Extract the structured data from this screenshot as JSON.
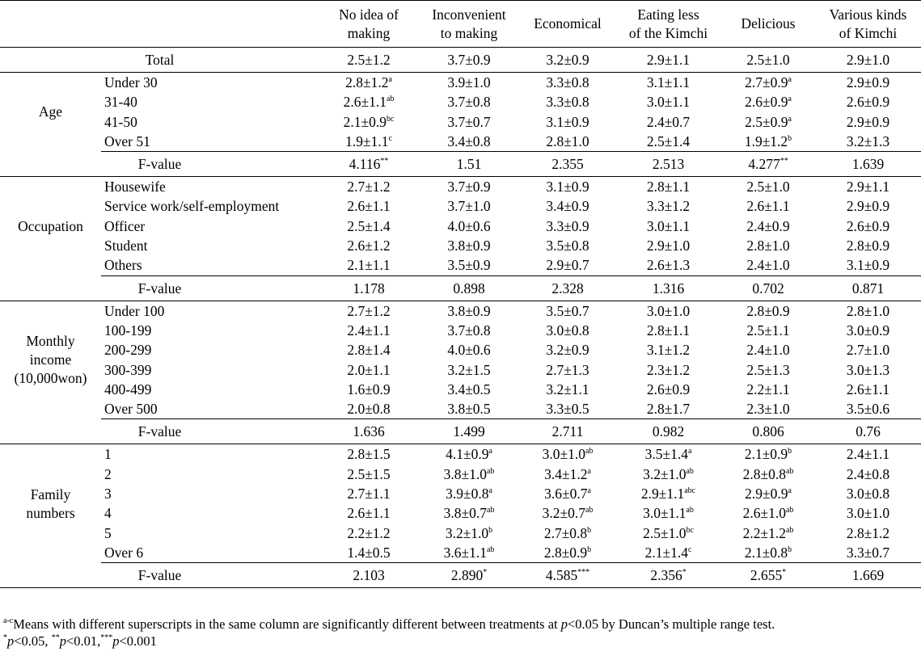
{
  "columns": [
    "No idea of making",
    "Inconvenient to making",
    "Economical",
    "Eating less of the Kimchi",
    "Delicious",
    "Various kinds of Kimchi"
  ],
  "columns_lines": [
    [
      "No idea of",
      "making"
    ],
    [
      "Inconvenient",
      "to making"
    ],
    [
      "Economical"
    ],
    [
      "Eating less",
      "of the Kimchi"
    ],
    [
      "Delicious"
    ],
    [
      "Various kinds",
      "of Kimchi"
    ]
  ],
  "total": {
    "label": "Total",
    "values": [
      "2.5±1.2",
      "3.7±0.9",
      "3.2±0.9",
      "2.9±1.1",
      "2.5±1.0",
      "2.9±1.0"
    ]
  },
  "groups": [
    {
      "name": "Age",
      "name_lines": [
        "Age"
      ],
      "rows": [
        {
          "label": "Under 30",
          "values": [
            [
              "2.8±1.2",
              "a"
            ],
            [
              "3.9±1.0",
              ""
            ],
            [
              "3.3±0.8",
              ""
            ],
            [
              "3.1±1.1",
              ""
            ],
            [
              "2.7±0.9",
              "a"
            ],
            [
              "2.9±0.9",
              ""
            ]
          ]
        },
        {
          "label": "31-40",
          "values": [
            [
              "2.6±1.1",
              "ab"
            ],
            [
              "3.7±0.8",
              ""
            ],
            [
              "3.3±0.8",
              ""
            ],
            [
              "3.0±1.1",
              ""
            ],
            [
              "2.6±0.9",
              "a"
            ],
            [
              "2.6±0.9",
              ""
            ]
          ]
        },
        {
          "label": "41-50",
          "values": [
            [
              "2.1±0.9",
              "bc"
            ],
            [
              "3.7±0.7",
              ""
            ],
            [
              "3.1±0.9",
              ""
            ],
            [
              "2.4±0.7",
              ""
            ],
            [
              "2.5±0.9",
              "a"
            ],
            [
              "2.9±0.9",
              ""
            ]
          ]
        },
        {
          "label": "Over 51",
          "values": [
            [
              "1.9±1.1",
              "c"
            ],
            [
              "3.4±0.8",
              ""
            ],
            [
              "2.8±1.0",
              ""
            ],
            [
              "2.5±1.4",
              ""
            ],
            [
              "1.9±1.2",
              "b"
            ],
            [
              "3.2±1.3",
              ""
            ]
          ]
        }
      ],
      "fvalue": {
        "label": "F-value",
        "values": [
          [
            "4.116",
            "**"
          ],
          [
            "1.51",
            ""
          ],
          [
            "2.355",
            ""
          ],
          [
            "2.513",
            ""
          ],
          [
            "4.277",
            "**"
          ],
          [
            "1.639",
            ""
          ]
        ]
      }
    },
    {
      "name": "Occupation",
      "name_lines": [
        "Occupation"
      ],
      "rows": [
        {
          "label": "Housewife",
          "values": [
            [
              "2.7±1.2",
              ""
            ],
            [
              "3.7±0.9",
              ""
            ],
            [
              "3.1±0.9",
              ""
            ],
            [
              "2.8±1.1",
              ""
            ],
            [
              "2.5±1.0",
              ""
            ],
            [
              "2.9±1.1",
              ""
            ]
          ]
        },
        {
          "label": "Service work/self-employment",
          "values": [
            [
              "2.6±1.1",
              ""
            ],
            [
              "3.7±1.0",
              ""
            ],
            [
              "3.4±0.9",
              ""
            ],
            [
              "3.3±1.2",
              ""
            ],
            [
              "2.6±1.1",
              ""
            ],
            [
              "2.9±0.9",
              ""
            ]
          ]
        },
        {
          "label": "Officer",
          "values": [
            [
              "2.5±1.4",
              ""
            ],
            [
              "4.0±0.6",
              ""
            ],
            [
              "3.3±0.9",
              ""
            ],
            [
              "3.0±1.1",
              ""
            ],
            [
              "2.4±0.9",
              ""
            ],
            [
              "2.6±0.9",
              ""
            ]
          ]
        },
        {
          "label": "Student",
          "values": [
            [
              "2.6±1.2",
              ""
            ],
            [
              "3.8±0.9",
              ""
            ],
            [
              "3.5±0.8",
              ""
            ],
            [
              "2.9±1.0",
              ""
            ],
            [
              "2.8±1.0",
              ""
            ],
            [
              "2.8±0.9",
              ""
            ]
          ]
        },
        {
          "label": "Others",
          "values": [
            [
              "2.1±1.1",
              ""
            ],
            [
              "3.5±0.9",
              ""
            ],
            [
              "2.9±0.7",
              ""
            ],
            [
              "2.6±1.3",
              ""
            ],
            [
              "2.4±1.0",
              ""
            ],
            [
              "3.1±0.9",
              ""
            ]
          ]
        }
      ],
      "fvalue": {
        "label": "F-value",
        "values": [
          [
            "1.178",
            ""
          ],
          [
            "0.898",
            ""
          ],
          [
            "2.328",
            ""
          ],
          [
            "1.316",
            ""
          ],
          [
            "0.702",
            ""
          ],
          [
            "0.871",
            ""
          ]
        ]
      }
    },
    {
      "name": "Monthly income (10,000won)",
      "name_lines": [
        "Monthly",
        "income",
        "(10,000won)"
      ],
      "rows": [
        {
          "label": "Under 100",
          "values": [
            [
              "2.7±1.2",
              ""
            ],
            [
              "3.8±0.9",
              ""
            ],
            [
              "3.5±0.7",
              ""
            ],
            [
              "3.0±1.0",
              ""
            ],
            [
              "2.8±0.9",
              ""
            ],
            [
              "2.8±1.0",
              ""
            ]
          ]
        },
        {
          "label": "100-199",
          "values": [
            [
              "2.4±1.1",
              ""
            ],
            [
              "3.7±0.8",
              ""
            ],
            [
              "3.0±0.8",
              ""
            ],
            [
              "2.8±1.1",
              ""
            ],
            [
              "2.5±1.1",
              ""
            ],
            [
              "3.0±0.9",
              ""
            ]
          ]
        },
        {
          "label": "200-299",
          "values": [
            [
              "2.8±1.4",
              ""
            ],
            [
              "4.0±0.6",
              ""
            ],
            [
              "3.2±0.9",
              ""
            ],
            [
              "3.1±1.2",
              ""
            ],
            [
              "2.4±1.0",
              ""
            ],
            [
              "2.7±1.0",
              ""
            ]
          ]
        },
        {
          "label": "300-399",
          "values": [
            [
              "2.0±1.1",
              ""
            ],
            [
              "3.2±1.5",
              ""
            ],
            [
              "2.7±1.3",
              ""
            ],
            [
              "2.3±1.2",
              ""
            ],
            [
              "2.5±1.3",
              ""
            ],
            [
              "3.0±1.3",
              ""
            ]
          ]
        },
        {
          "label": "400-499",
          "values": [
            [
              "1.6±0.9",
              ""
            ],
            [
              "3.4±0.5",
              ""
            ],
            [
              "3.2±1.1",
              ""
            ],
            [
              "2.6±0.9",
              ""
            ],
            [
              "2.2±1.1",
              ""
            ],
            [
              "2.6±1.1",
              ""
            ]
          ]
        },
        {
          "label": "Over 500",
          "values": [
            [
              "2.0±0.8",
              ""
            ],
            [
              "3.8±0.5",
              ""
            ],
            [
              "3.3±0.5",
              ""
            ],
            [
              "2.8±1.7",
              ""
            ],
            [
              "2.3±1.0",
              ""
            ],
            [
              "3.5±0.6",
              ""
            ]
          ]
        }
      ],
      "fvalue": {
        "label": "F-value",
        "values": [
          [
            "1.636",
            ""
          ],
          [
            "1.499",
            ""
          ],
          [
            "2.711",
            ""
          ],
          [
            "0.982",
            ""
          ],
          [
            "0.806",
            ""
          ],
          [
            "0.76",
            ""
          ]
        ]
      }
    },
    {
      "name": "Family numbers",
      "name_lines": [
        "Family",
        "numbers"
      ],
      "rows": [
        {
          "label": "1",
          "values": [
            [
              "2.8±1.5",
              ""
            ],
            [
              "4.1±0.9",
              "a"
            ],
            [
              "3.0±1.0",
              "ab"
            ],
            [
              "3.5±1.4",
              "a"
            ],
            [
              "2.1±0.9",
              "b"
            ],
            [
              "2.4±1.1",
              ""
            ]
          ]
        },
        {
          "label": "2",
          "values": [
            [
              "2.5±1.5",
              ""
            ],
            [
              "3.8±1.0",
              "ab"
            ],
            [
              "3.4±1.2",
              "a"
            ],
            [
              "3.2±1.0",
              "ab"
            ],
            [
              "2.8±0.8",
              "ab"
            ],
            [
              "2.4±0.8",
              ""
            ]
          ]
        },
        {
          "label": "3",
          "values": [
            [
              "2.7±1.1",
              ""
            ],
            [
              "3.9±0.8",
              "a"
            ],
            [
              "3.6±0.7",
              "a"
            ],
            [
              "2.9±1.1",
              "abc"
            ],
            [
              "2.9±0.9",
              "a"
            ],
            [
              "3.0±0.8",
              ""
            ]
          ]
        },
        {
          "label": "4",
          "values": [
            [
              "2.6±1.1",
              ""
            ],
            [
              "3.8±0.7",
              "ab"
            ],
            [
              "3.2±0.7",
              "ab"
            ],
            [
              "3.0±1.1",
              "ab"
            ],
            [
              "2.6±1.0",
              "ab"
            ],
            [
              "3.0±1.0",
              ""
            ]
          ]
        },
        {
          "label": "5",
          "values": [
            [
              "2.2±1.2",
              ""
            ],
            [
              "3.2±1.0",
              "b"
            ],
            [
              "2.7±0.8",
              "b"
            ],
            [
              "2.5±1.0",
              "bc"
            ],
            [
              "2.2±1.2",
              "ab"
            ],
            [
              "2.8±1.2",
              ""
            ]
          ]
        },
        {
          "label": "Over 6",
          "values": [
            [
              "1.4±0.5",
              ""
            ],
            [
              "3.6±1.1",
              "ab"
            ],
            [
              "2.8±0.9",
              "b"
            ],
            [
              "2.1±1.4",
              "c"
            ],
            [
              "2.1±0.8",
              "b"
            ],
            [
              "3.3±0.7",
              ""
            ]
          ]
        }
      ],
      "fvalue": {
        "label": "F-value",
        "values": [
          [
            "2.103",
            ""
          ],
          [
            "2.890",
            "*"
          ],
          [
            "4.585",
            "***"
          ],
          [
            "2.356",
            "*"
          ],
          [
            "2.655",
            "*"
          ],
          [
            "1.669",
            ""
          ]
        ]
      }
    }
  ],
  "footnotes": {
    "note1_sup": "a-c",
    "note1_pre": "Means with different superscripts in the same column are significantly different between treatments at ",
    "note1_p": "p",
    "note1_post": "<0.05 by Duncan’s multiple range test.",
    "note2": [
      {
        "sup": "*",
        "p": "p",
        "text": "<0.05, "
      },
      {
        "sup": "**",
        "p": "p",
        "text": "<0.01,"
      },
      {
        "sup": "***",
        "p": "p",
        "text": "<0.001"
      }
    ]
  }
}
